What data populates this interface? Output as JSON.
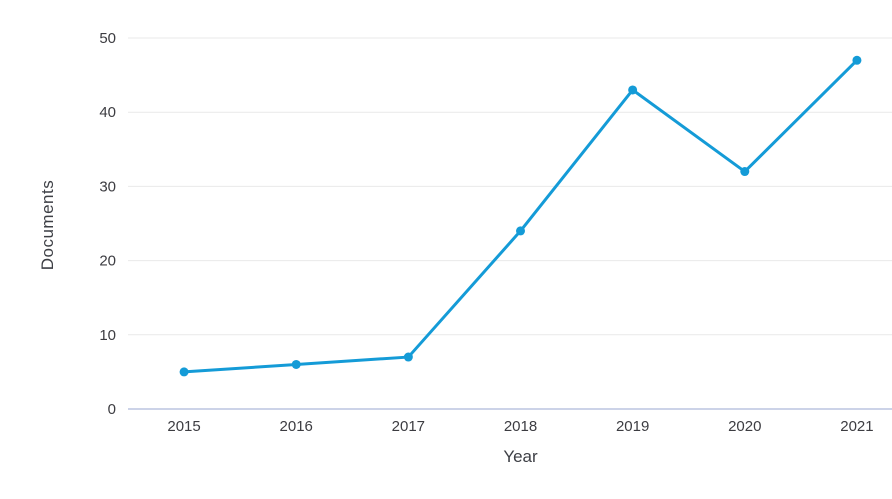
{
  "chart_data": {
    "type": "line",
    "categories": [
      "2015",
      "2016",
      "2017",
      "2018",
      "2019",
      "2020",
      "2021"
    ],
    "values": [
      5,
      6,
      7,
      24,
      43,
      32,
      47
    ],
    "title": "",
    "xlabel": "Year",
    "ylabel": "Documents",
    "ylim": [
      0,
      50
    ],
    "yticks": [
      0,
      10,
      20,
      30,
      40,
      50
    ],
    "grid": "horizontal",
    "legend": "none",
    "line_color": "#149bd7",
    "marker": "circle",
    "marker_radius": 4.5,
    "line_width": 3,
    "grid_color": "#e9e9e9",
    "axis_line_color": "#ccd3e8",
    "tick_text_color": "#3c3c41",
    "axis_title_color": "#3d3f45",
    "background_color": "#ffffff"
  }
}
